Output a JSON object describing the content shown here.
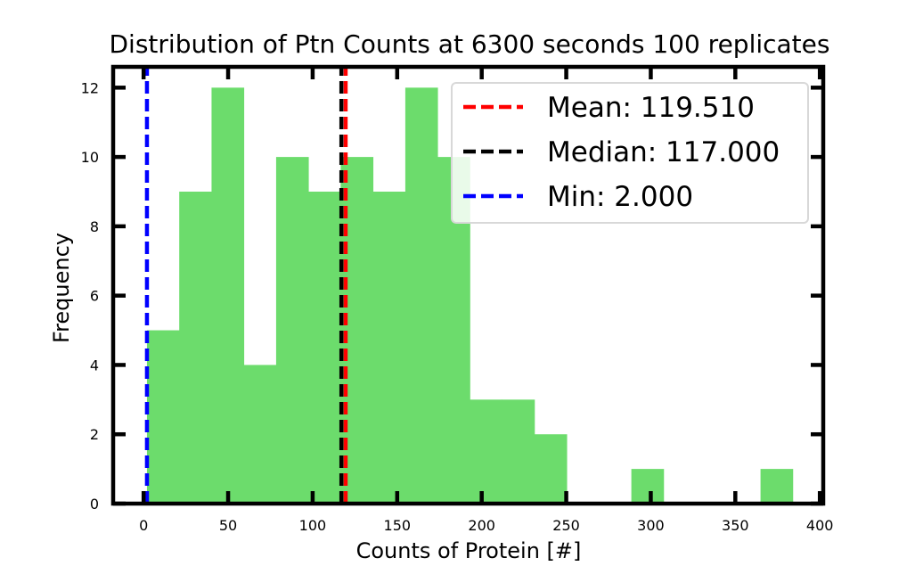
{
  "chart_data": {
    "type": "bar",
    "title": "Distribution of Ptn Counts at 6300 seconds 100 replicates",
    "xlabel": "Counts of Protein [#]",
    "ylabel": "Frequency",
    "xlim": [
      -18,
      402
    ],
    "ylim": [
      0,
      12.6
    ],
    "x_ticks": [
      "0",
      "50",
      "100",
      "150",
      "200",
      "250",
      "300",
      "350",
      "400"
    ],
    "y_ticks": [
      "0",
      "2",
      "4",
      "6",
      "8",
      "10",
      "12"
    ],
    "bar_color": "#6cdc6c",
    "bins": [
      {
        "start": 2.0,
        "end": 21.1,
        "count": 5
      },
      {
        "start": 21.1,
        "end": 40.2,
        "count": 9
      },
      {
        "start": 40.2,
        "end": 59.3,
        "count": 12
      },
      {
        "start": 59.3,
        "end": 78.4,
        "count": 4
      },
      {
        "start": 78.4,
        "end": 97.5,
        "count": 10
      },
      {
        "start": 97.5,
        "end": 116.6,
        "count": 9
      },
      {
        "start": 116.6,
        "end": 135.7,
        "count": 10
      },
      {
        "start": 135.7,
        "end": 154.8,
        "count": 9
      },
      {
        "start": 154.8,
        "end": 173.9,
        "count": 12
      },
      {
        "start": 173.9,
        "end": 193.0,
        "count": 10
      },
      {
        "start": 193.0,
        "end": 212.1,
        "count": 3
      },
      {
        "start": 212.1,
        "end": 231.2,
        "count": 3
      },
      {
        "start": 231.2,
        "end": 250.3,
        "count": 2
      },
      {
        "start": 250.3,
        "end": 269.4,
        "count": 0
      },
      {
        "start": 269.4,
        "end": 288.5,
        "count": 0
      },
      {
        "start": 288.5,
        "end": 307.6,
        "count": 1
      },
      {
        "start": 307.6,
        "end": 326.7,
        "count": 0
      },
      {
        "start": 326.7,
        "end": 345.8,
        "count": 0
      },
      {
        "start": 345.8,
        "end": 364.9,
        "count": 0
      },
      {
        "start": 364.9,
        "end": 384.0,
        "count": 1
      }
    ],
    "reference_lines": [
      {
        "label": "Mean: 119.510",
        "value": 119.51,
        "color": "#ff0000"
      },
      {
        "label": "Median: 117.000",
        "value": 117.0,
        "color": "#000000"
      },
      {
        "label": "Min: 2.000",
        "value": 2.0,
        "color": "#0000ff"
      }
    ],
    "legend_position": "top-right",
    "grid": false
  }
}
